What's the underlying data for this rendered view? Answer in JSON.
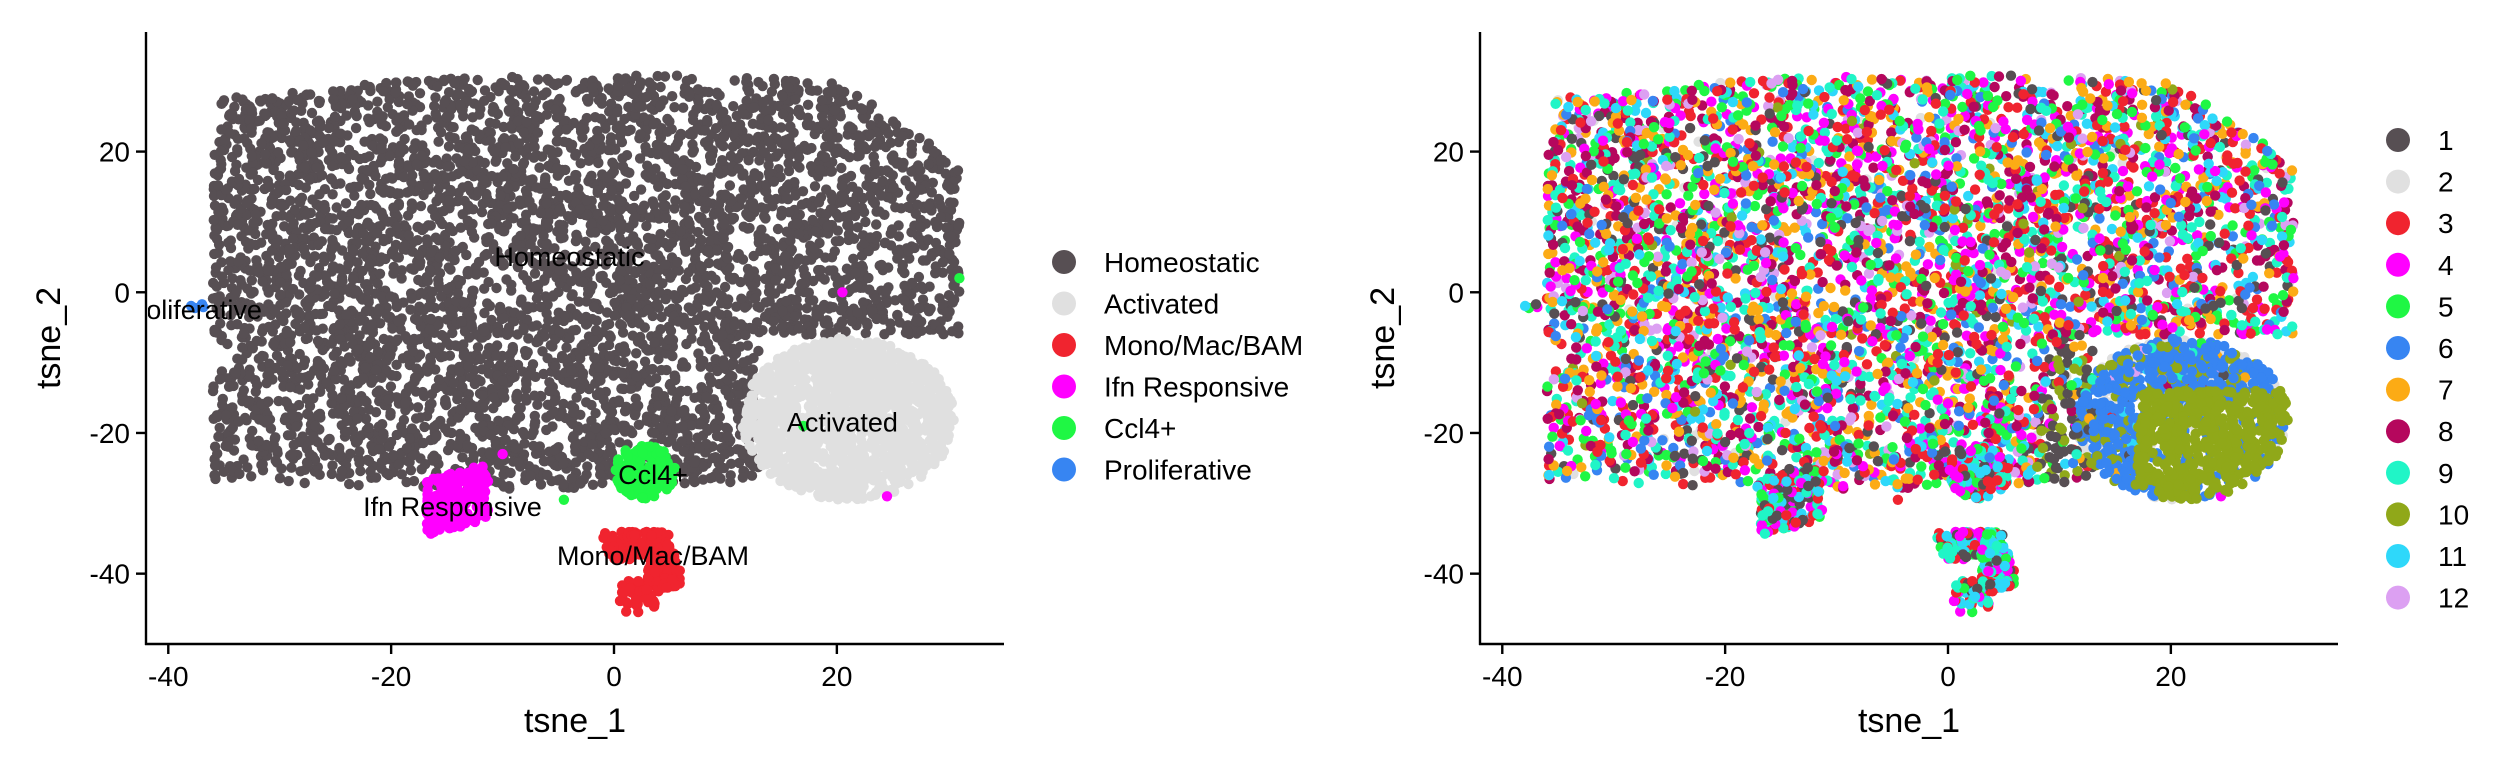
{
  "chart_data": [
    {
      "type": "scatter",
      "panel": "left",
      "xlabel": "tsne_1",
      "ylabel": "tsne_2",
      "xlim": [
        -42,
        35
      ],
      "ylim": [
        -50,
        37
      ],
      "xticks": [
        -40,
        -20,
        0,
        20
      ],
      "yticks": [
        -40,
        -20,
        0,
        20
      ],
      "grid": false,
      "legend": "right",
      "series": [
        {
          "name": "Homeostatic",
          "color": "#574f53"
        },
        {
          "name": "Activated",
          "color": "#e0e0e0"
        },
        {
          "name": "Mono/Mac/BAM",
          "color": "#f0242f"
        },
        {
          "name": "Ifn Responsive",
          "color": "#ff00ff"
        },
        {
          "name": "Ccl4+",
          "color": "#1ff744"
        },
        {
          "name": "Proliferative",
          "color": "#3785f2"
        }
      ],
      "annotations": [
        {
          "text": "Homeostatic",
          "x": -4,
          "y": 5
        },
        {
          "text": "Activated",
          "x": 20.5,
          "y": -18.5
        },
        {
          "text": "Ccl4+",
          "x": 3.5,
          "y": -26
        },
        {
          "text": "Ifn Responsive",
          "x": -14.5,
          "y": -30.5
        },
        {
          "text": "Mono/Mac/BAM",
          "x": 3.5,
          "y": -37.5
        },
        {
          "text": "Proliferative",
          "x": -38,
          "y": -2.5
        }
      ]
    },
    {
      "type": "scatter",
      "panel": "right",
      "xlabel": "tsne_1",
      "ylabel": "tsne_2",
      "xlim": [
        -42,
        35
      ],
      "ylim": [
        -50,
        37
      ],
      "xticks": [
        -40,
        -20,
        0,
        20
      ],
      "yticks": [
        -40,
        -20,
        0,
        20
      ],
      "grid": false,
      "legend": "right",
      "series": [
        {
          "name": "1",
          "color": "#574f53"
        },
        {
          "name": "2",
          "color": "#e0e0e0"
        },
        {
          "name": "3",
          "color": "#f0242f"
        },
        {
          "name": "4",
          "color": "#ff00ff"
        },
        {
          "name": "5",
          "color": "#1ff744"
        },
        {
          "name": "6",
          "color": "#3785f2"
        },
        {
          "name": "7",
          "color": "#fcab15"
        },
        {
          "name": "8",
          "color": "#b5075d"
        },
        {
          "name": "9",
          "color": "#20f5c7"
        },
        {
          "name": "10",
          "color": "#90a819"
        },
        {
          "name": "11",
          "color": "#2ed8fa"
        },
        {
          "name": "12",
          "color": "#dca0f2"
        }
      ]
    }
  ]
}
